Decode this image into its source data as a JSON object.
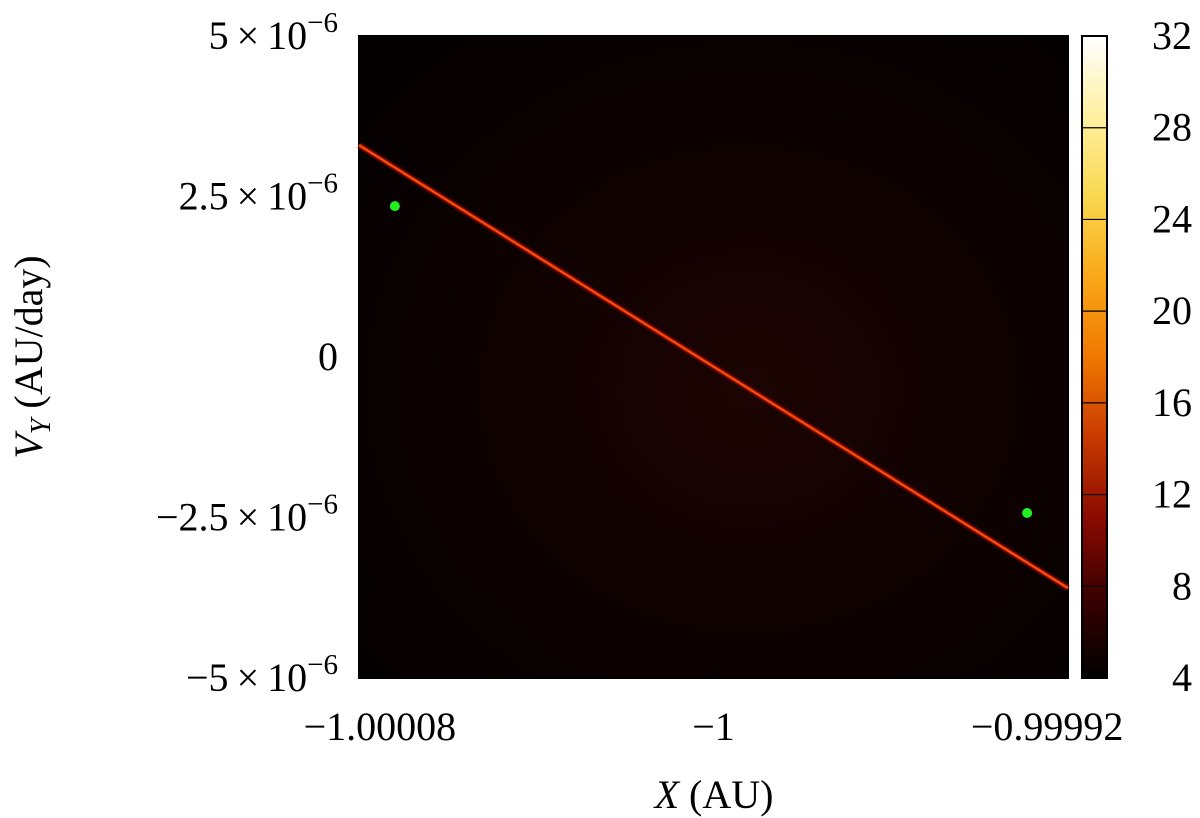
{
  "chart_data": {
    "type": "heatmap",
    "title": "",
    "xlabel": {
      "var": "X",
      "unit": "(AU)"
    },
    "ylabel": {
      "var": "V",
      "sub": "Y",
      "unit": "(AU/day)"
    },
    "xlim": [
      -1.000085,
      -0.999915
    ],
    "ylim": [
      -5e-06,
      5e-06
    ],
    "x_ticks": [
      {
        "value": -1.00008,
        "label": "−1.00008"
      },
      {
        "value": -1.0,
        "label": "−1"
      },
      {
        "value": -0.99992,
        "label": "−0.99992"
      }
    ],
    "y_ticks": [
      {
        "value": 5e-06,
        "mant": "5",
        "exp": "−6"
      },
      {
        "value": 2.5e-06,
        "mant": "2.5",
        "exp": "−6"
      },
      {
        "value": 0,
        "mant": "0",
        "exp": ""
      },
      {
        "value": -2.5e-06,
        "mant": "−2.5",
        "exp": "−6"
      },
      {
        "value": -5e-06,
        "mant": "−5",
        "exp": "−6"
      }
    ],
    "colorbar": {
      "range": [
        4,
        32
      ],
      "ticks": [
        {
          "value": 32,
          "label": "32"
        },
        {
          "value": 28,
          "label": "28"
        },
        {
          "value": 24,
          "label": "24"
        },
        {
          "value": 20,
          "label": "20"
        },
        {
          "value": 16,
          "label": "16"
        },
        {
          "value": 12,
          "label": "12"
        },
        {
          "value": 8,
          "label": "8"
        },
        {
          "value": 4,
          "label": "4"
        }
      ],
      "colors": [
        "#000000",
        "#3a0000",
        "#8a0a00",
        "#c83a00",
        "#f07800",
        "#f8a818",
        "#f8d850",
        "#fff0a0",
        "#ffffff"
      ]
    },
    "ridge_line": {
      "x": [
        -1.000085,
        -0.999915
      ],
      "y": [
        3.3e-06,
        -3.6e-06
      ],
      "color": "#ff5a14"
    },
    "points": [
      {
        "x": -1.0000764,
        "y": 2.35e-06,
        "color": "#22ee22"
      },
      {
        "x": -0.9999248,
        "y": -2.43e-06,
        "color": "#22ee22"
      }
    ],
    "grid": false,
    "legend": "none"
  }
}
